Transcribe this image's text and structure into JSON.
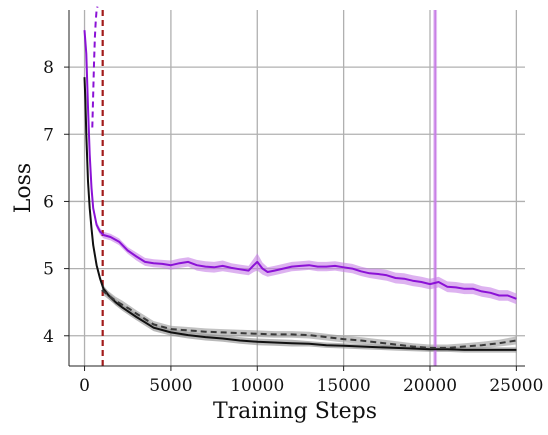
{
  "chart_data": {
    "type": "line",
    "title": "",
    "xlabel": "Training Steps",
    "ylabel": "Loss",
    "xlim": [
      -900,
      25500
    ],
    "ylim": [
      3.55,
      8.85
    ],
    "x_ticks": [
      0,
      5000,
      10000,
      15000,
      20000,
      25000
    ],
    "y_ticks": [
      4,
      5,
      6,
      7,
      8
    ],
    "grid": true,
    "legend": "none",
    "series": [
      {
        "style": "solid",
        "color": "#8B12D6",
        "band_color": "#C77FE6",
        "x": [
          0,
          100,
          200,
          300,
          400,
          500,
          700,
          900,
          1100,
          1500,
          2000,
          2500,
          3000,
          3500,
          4000,
          4500,
          5000,
          5500,
          6000,
          6500,
          7000,
          7500,
          8000,
          8500,
          9000,
          9500,
          9800,
          10000,
          10300,
          10600,
          11000,
          11500,
          12000,
          12500,
          13000,
          13500,
          14000,
          14500,
          15000,
          15500,
          16000,
          16500,
          17000,
          17500,
          18000,
          18500,
          19000,
          19500,
          20000,
          20500,
          21000,
          21500,
          22000,
          22500,
          23000,
          23500,
          24000,
          24500,
          25000
        ],
        "values": [
          8.55,
          8.2,
          7.4,
          6.7,
          6.2,
          5.9,
          5.65,
          5.55,
          5.5,
          5.47,
          5.4,
          5.27,
          5.18,
          5.1,
          5.08,
          5.07,
          5.05,
          5.08,
          5.1,
          5.05,
          5.03,
          5.02,
          5.04,
          5.01,
          4.99,
          4.97,
          5.05,
          5.1,
          5.0,
          4.95,
          4.97,
          5.0,
          5.03,
          5.04,
          5.05,
          5.03,
          5.03,
          5.04,
          5.02,
          5.0,
          4.96,
          4.93,
          4.92,
          4.9,
          4.86,
          4.85,
          4.82,
          4.8,
          4.77,
          4.8,
          4.73,
          4.72,
          4.7,
          4.7,
          4.66,
          4.64,
          4.6,
          4.6,
          4.55
        ],
        "band_halfwidth": [
          0.08,
          0.08,
          0.08,
          0.08,
          0.06,
          0.06,
          0.05,
          0.05,
          0.05,
          0.05,
          0.05,
          0.05,
          0.06,
          0.06,
          0.06,
          0.06,
          0.07,
          0.07,
          0.07,
          0.08,
          0.08,
          0.08,
          0.08,
          0.07,
          0.07,
          0.07,
          0.1,
          0.13,
          0.09,
          0.07,
          0.07,
          0.07,
          0.07,
          0.07,
          0.07,
          0.07,
          0.07,
          0.07,
          0.07,
          0.07,
          0.07,
          0.07,
          0.08,
          0.08,
          0.08,
          0.08,
          0.08,
          0.08,
          0.08,
          0.08,
          0.08,
          0.08,
          0.08,
          0.08,
          0.08,
          0.08,
          0.08,
          0.08,
          0.08
        ]
      },
      {
        "style": "dashed",
        "color": "#8B12D6",
        "x": [
          450,
          500,
          550,
          600,
          650,
          700,
          750
        ],
        "values": [
          7.1,
          7.6,
          8.05,
          8.45,
          8.7,
          8.85,
          8.9
        ]
      },
      {
        "style": "solid",
        "color": "#111111",
        "band_color": "#8A8A8A",
        "x": [
          0,
          50,
          100,
          200,
          300,
          400,
          500,
          700,
          900,
          1100,
          1400,
          1800,
          2200,
          2600,
          3000,
          3500,
          4000,
          5000,
          6000,
          7000,
          8000,
          9000,
          10000,
          11000,
          12000,
          13000,
          14000,
          15000,
          16000,
          17000,
          18000,
          19000,
          20000,
          21000,
          22000,
          23000,
          24000,
          25000
        ],
        "values": [
          7.85,
          7.5,
          7.0,
          6.3,
          5.9,
          5.6,
          5.35,
          5.05,
          4.85,
          4.7,
          4.6,
          4.5,
          4.42,
          4.35,
          4.28,
          4.2,
          4.12,
          4.05,
          4.01,
          3.98,
          3.96,
          3.93,
          3.91,
          3.9,
          3.89,
          3.88,
          3.86,
          3.85,
          3.84,
          3.83,
          3.82,
          3.81,
          3.8,
          3.8,
          3.79,
          3.79,
          3.79,
          3.79
        ],
        "band_halfwidth": [
          0.06,
          0.06,
          0.06,
          0.06,
          0.06,
          0.06,
          0.05,
          0.05,
          0.05,
          0.05,
          0.05,
          0.05,
          0.05,
          0.05,
          0.05,
          0.05,
          0.05,
          0.05,
          0.05,
          0.05,
          0.05,
          0.05,
          0.05,
          0.05,
          0.05,
          0.04,
          0.04,
          0.04,
          0.04,
          0.04,
          0.04,
          0.04,
          0.04,
          0.04,
          0.04,
          0.04,
          0.04,
          0.04
        ]
      },
      {
        "style": "dashed",
        "color": "#3A3A3A",
        "band_color": "#9A9A9A",
        "x": [
          1000,
          1400,
          1800,
          2200,
          2600,
          3000,
          3500,
          4000,
          5000,
          6000,
          7000,
          8000,
          9000,
          10000,
          11000,
          12000,
          13000,
          14000,
          15000,
          16000,
          17000,
          18000,
          19000,
          20000,
          21000,
          22000,
          23000,
          24000,
          25000
        ],
        "values": [
          4.68,
          4.6,
          4.52,
          4.46,
          4.4,
          4.33,
          4.25,
          4.17,
          4.1,
          4.08,
          4.06,
          4.05,
          4.04,
          4.03,
          4.02,
          4.02,
          4.01,
          3.98,
          3.95,
          3.93,
          3.9,
          3.87,
          3.84,
          3.82,
          3.82,
          3.84,
          3.86,
          3.89,
          3.93
        ],
        "band_halfwidth": [
          0.06,
          0.06,
          0.06,
          0.06,
          0.05,
          0.05,
          0.05,
          0.05,
          0.05,
          0.05,
          0.05,
          0.05,
          0.05,
          0.05,
          0.05,
          0.05,
          0.05,
          0.05,
          0.05,
          0.05,
          0.05,
          0.05,
          0.05,
          0.05,
          0.05,
          0.05,
          0.05,
          0.05,
          0.06
        ]
      }
    ],
    "vertical_lines": [
      {
        "x": 1050,
        "style": "dashed",
        "color": "#A11C1C"
      },
      {
        "x": 20300,
        "style": "solid",
        "color": "#C77FE6",
        "band_halfwidth": 110
      }
    ]
  }
}
